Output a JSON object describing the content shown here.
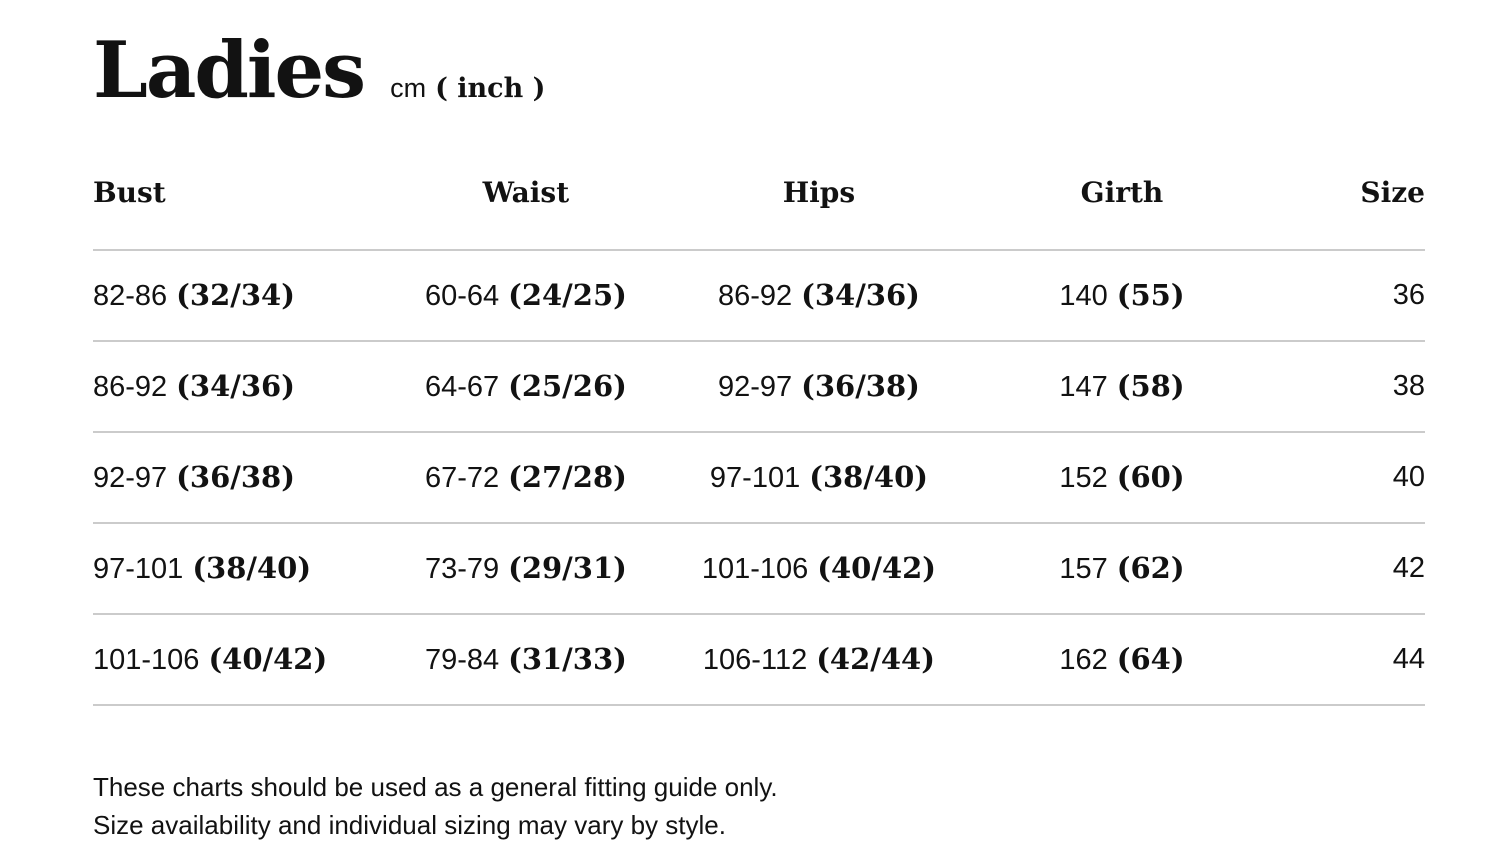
{
  "title": "Ladies",
  "units": {
    "metric": "cm",
    "imperial": "( inch )"
  },
  "table": {
    "columns": [
      "Bust",
      "Waist",
      "Hips",
      "Girth",
      "Size"
    ],
    "rows": [
      {
        "bust_cm": "82-86",
        "bust_in": "(32/34)",
        "waist_cm": "60-64",
        "waist_in": "(24/25)",
        "hips_cm": "86-92",
        "hips_in": "(34/36)",
        "girth_cm": "140",
        "girth_in": "(55)",
        "size": "36"
      },
      {
        "bust_cm": "86-92",
        "bust_in": "(34/36)",
        "waist_cm": "64-67",
        "waist_in": "(25/26)",
        "hips_cm": "92-97",
        "hips_in": "(36/38)",
        "girth_cm": "147",
        "girth_in": "(58)",
        "size": "38"
      },
      {
        "bust_cm": "92-97",
        "bust_in": "(36/38)",
        "waist_cm": "67-72",
        "waist_in": "(27/28)",
        "hips_cm": "97-101",
        "hips_in": "(38/40)",
        "girth_cm": "152",
        "girth_in": "(60)",
        "size": "40"
      },
      {
        "bust_cm": "97-101",
        "bust_in": "(38/40)",
        "waist_cm": "73-79",
        "waist_in": "(29/31)",
        "hips_cm": "101-106",
        "hips_in": "(40/42)",
        "girth_cm": "157",
        "girth_in": "(62)",
        "size": "42"
      },
      {
        "bust_cm": "101-106",
        "bust_in": "(40/42)",
        "waist_cm": "79-84",
        "waist_in": "(31/33)",
        "hips_cm": "106-112",
        "hips_in": "(42/44)",
        "girth_cm": "162",
        "girth_in": "(64)",
        "size": "44"
      }
    ]
  },
  "footer": {
    "line1": "These charts should be used as a general fitting guide only.",
    "line2": "Size availability and individual sizing may vary by style."
  },
  "colors": {
    "text": "#121212",
    "divider": "#cbcbcb",
    "background": "#ffffff"
  }
}
